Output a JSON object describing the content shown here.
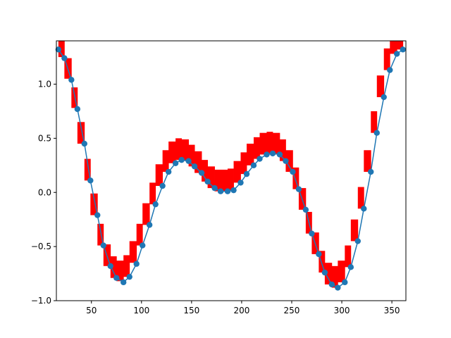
{
  "chart_data": {
    "type": "line",
    "title": "",
    "xlabel": "",
    "ylabel": "",
    "xlim": [
      15,
      364
    ],
    "ylim": [
      -1.0,
      1.4
    ],
    "xticks": [
      50,
      100,
      150,
      200,
      250,
      300,
      350
    ],
    "yticks": [
      -1.0,
      -0.5,
      0.0,
      0.5,
      1.0
    ],
    "xtick_labels": [
      "50",
      "100",
      "150",
      "200",
      "250",
      "300",
      "350"
    ],
    "ytick_labels": [
      "−1.0",
      "−0.5",
      "0.0",
      "0.5",
      "1.0"
    ],
    "grid": false,
    "legend": null,
    "colors": {
      "line": "#1f77b4",
      "band": "#ff0000"
    },
    "series": [
      {
        "type": "line",
        "marker": "o",
        "x": [
          17,
          23,
          30,
          36,
          43,
          49,
          56,
          62,
          69,
          75,
          82,
          88,
          95,
          101,
          108,
          114,
          121,
          127,
          134,
          140,
          147,
          153,
          160,
          166,
          173,
          179,
          186,
          192,
          199,
          205,
          212,
          218,
          225,
          231,
          238,
          244,
          251,
          257,
          264,
          270,
          277,
          283,
          290,
          296,
          303,
          309,
          316,
          322,
          329,
          335,
          342,
          348,
          355,
          361
        ],
        "y": [
          1.32,
          1.24,
          1.04,
          0.77,
          0.45,
          0.11,
          -0.21,
          -0.49,
          -0.68,
          -0.79,
          -0.83,
          -0.78,
          -0.66,
          -0.49,
          -0.3,
          -0.11,
          0.06,
          0.19,
          0.27,
          0.3,
          0.29,
          0.24,
          0.18,
          0.1,
          0.04,
          0.01,
          0.01,
          0.02,
          0.09,
          0.17,
          0.25,
          0.31,
          0.35,
          0.36,
          0.35,
          0.29,
          0.19,
          0.03,
          -0.16,
          -0.38,
          -0.57,
          -0.74,
          -0.85,
          -0.88,
          -0.83,
          -0.69,
          -0.45,
          -0.15,
          0.19,
          0.55,
          0.88,
          1.13,
          1.28,
          1.32
        ]
      },
      {
        "type": "step_band",
        "lower": [
          1.25,
          1.05,
          0.78,
          0.45,
          0.11,
          -0.21,
          -0.49,
          -0.68,
          -0.79,
          -0.82,
          -0.78,
          -0.65,
          -0.49,
          -0.3,
          -0.11,
          0.06,
          0.19,
          0.27,
          0.3,
          0.29,
          0.24,
          0.18,
          0.1,
          0.04,
          0.01,
          0.01,
          0.02,
          0.09,
          0.17,
          0.25,
          0.31,
          0.35,
          0.36,
          0.35,
          0.29,
          0.19,
          0.03,
          -0.16,
          -0.38,
          -0.57,
          -0.74,
          -0.85,
          -0.88,
          -0.83,
          -0.69,
          -0.45,
          -0.15,
          0.19,
          0.55,
          0.88,
          1.13,
          1.28,
          1.32
        ],
        "upper": [
          1.42,
          1.24,
          0.97,
          0.65,
          0.31,
          -0.01,
          -0.29,
          -0.48,
          -0.59,
          -0.63,
          -0.58,
          -0.45,
          -0.29,
          -0.1,
          0.09,
          0.26,
          0.39,
          0.47,
          0.5,
          0.49,
          0.44,
          0.38,
          0.3,
          0.24,
          0.21,
          0.21,
          0.22,
          0.29,
          0.37,
          0.45,
          0.51,
          0.55,
          0.56,
          0.55,
          0.49,
          0.39,
          0.23,
          0.04,
          -0.18,
          -0.37,
          -0.54,
          -0.65,
          -0.68,
          -0.63,
          -0.49,
          -0.25,
          0.05,
          0.39,
          0.75,
          1.08,
          1.33,
          1.45,
          1.5
        ]
      }
    ]
  }
}
